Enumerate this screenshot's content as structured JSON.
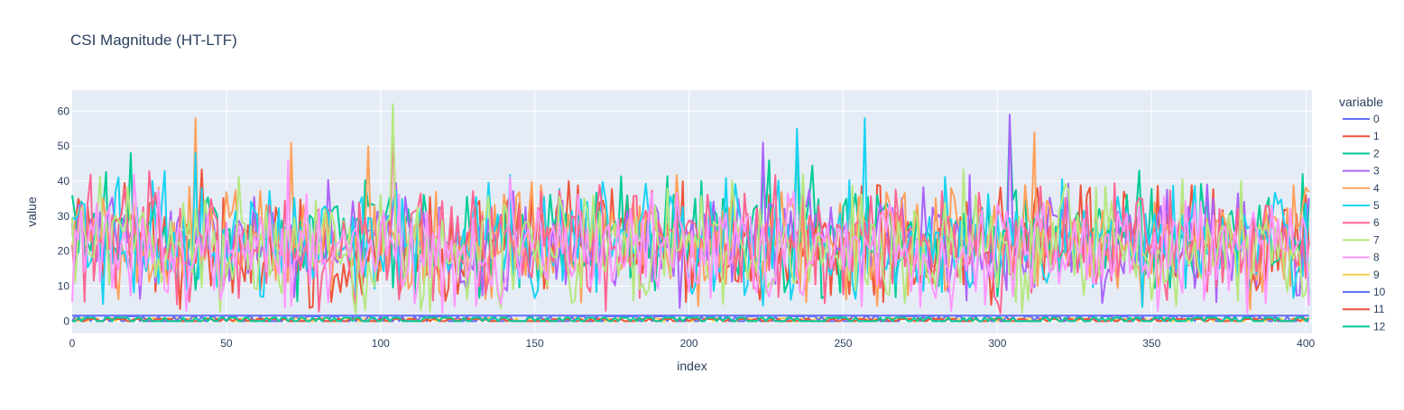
{
  "chart_data": {
    "type": "line",
    "title": "CSI Magnitude (HT-LTF)",
    "xlabel": "index",
    "ylabel": "value",
    "xlim": [
      0,
      402
    ],
    "ylim": [
      -3.5,
      66
    ],
    "xticks": [
      0,
      50,
      100,
      150,
      200,
      250,
      300,
      350,
      400
    ],
    "yticks": [
      0,
      10,
      20,
      30,
      40,
      50,
      60
    ],
    "xtick_labels": [
      "0",
      "50",
      "100",
      "150",
      "200",
      "250",
      "300",
      "350",
      "400"
    ],
    "ytick_labels": [
      "0",
      "10",
      "20",
      "30",
      "40",
      "50",
      "60"
    ],
    "grid": true,
    "legend": {
      "title": "variable",
      "placement": "right",
      "entries": [
        "0",
        "1",
        "2",
        "3",
        "4",
        "5",
        "6",
        "7",
        "8",
        "9",
        "10",
        "11",
        "12"
      ]
    },
    "colors": {
      "plot_bg": "#E5ECF6",
      "grid": "#ffffff",
      "text": "#2a3f5f",
      "palette": [
        "#636EFA",
        "#EF553B",
        "#00CC96",
        "#AB63FA",
        "#FFA15A",
        "#19D3F3",
        "#FF6692",
        "#B6E880",
        "#FF97FF",
        "#FECB52"
      ]
    },
    "n_points": 402,
    "notes_series": "Series 0-12 values across index 0-401; most subcarrier series fluctuate between ~5 and ~45 around mean ~22; series 0 and 10-12 stay near 0-1.7 (null subcarriers).",
    "series": [
      {
        "name": "0",
        "base": 1.6,
        "style": "flat"
      },
      {
        "name": "1",
        "base": 22,
        "style": "noise",
        "peaks": [
          [
            104,
            58
          ]
        ]
      },
      {
        "name": "2",
        "base": 24,
        "style": "noise",
        "peaks": [
          [
            19,
            48
          ],
          [
            235,
            52
          ],
          [
            304,
            58
          ]
        ]
      },
      {
        "name": "3",
        "base": 23,
        "style": "noise",
        "peaks": [
          [
            224,
            51
          ],
          [
            304,
            59
          ]
        ]
      },
      {
        "name": "4",
        "base": 23,
        "style": "noise",
        "peaks": [
          [
            40,
            58
          ],
          [
            71,
            51
          ],
          [
            96,
            50
          ],
          [
            312,
            54
          ]
        ]
      },
      {
        "name": "5",
        "base": 23,
        "style": "noise",
        "peaks": [
          [
            40,
            48
          ],
          [
            235,
            55
          ],
          [
            257,
            58
          ]
        ]
      },
      {
        "name": "6",
        "base": 22,
        "style": "noise",
        "peaks": [
          [
            104,
            57
          ]
        ]
      },
      {
        "name": "7",
        "base": 21,
        "style": "noise",
        "peaks": [
          [
            104,
            62
          ]
        ]
      },
      {
        "name": "8",
        "base": 20,
        "style": "noise",
        "peaks": [
          [
            70,
            46
          ]
        ]
      },
      {
        "name": "9",
        "base": 0.8,
        "style": "toggle"
      },
      {
        "name": "10",
        "base": 1.4,
        "style": "toggle"
      },
      {
        "name": "11",
        "base": 0.6,
        "style": "toggle"
      },
      {
        "name": "12",
        "base": 1.0,
        "style": "toggle"
      }
    ]
  }
}
